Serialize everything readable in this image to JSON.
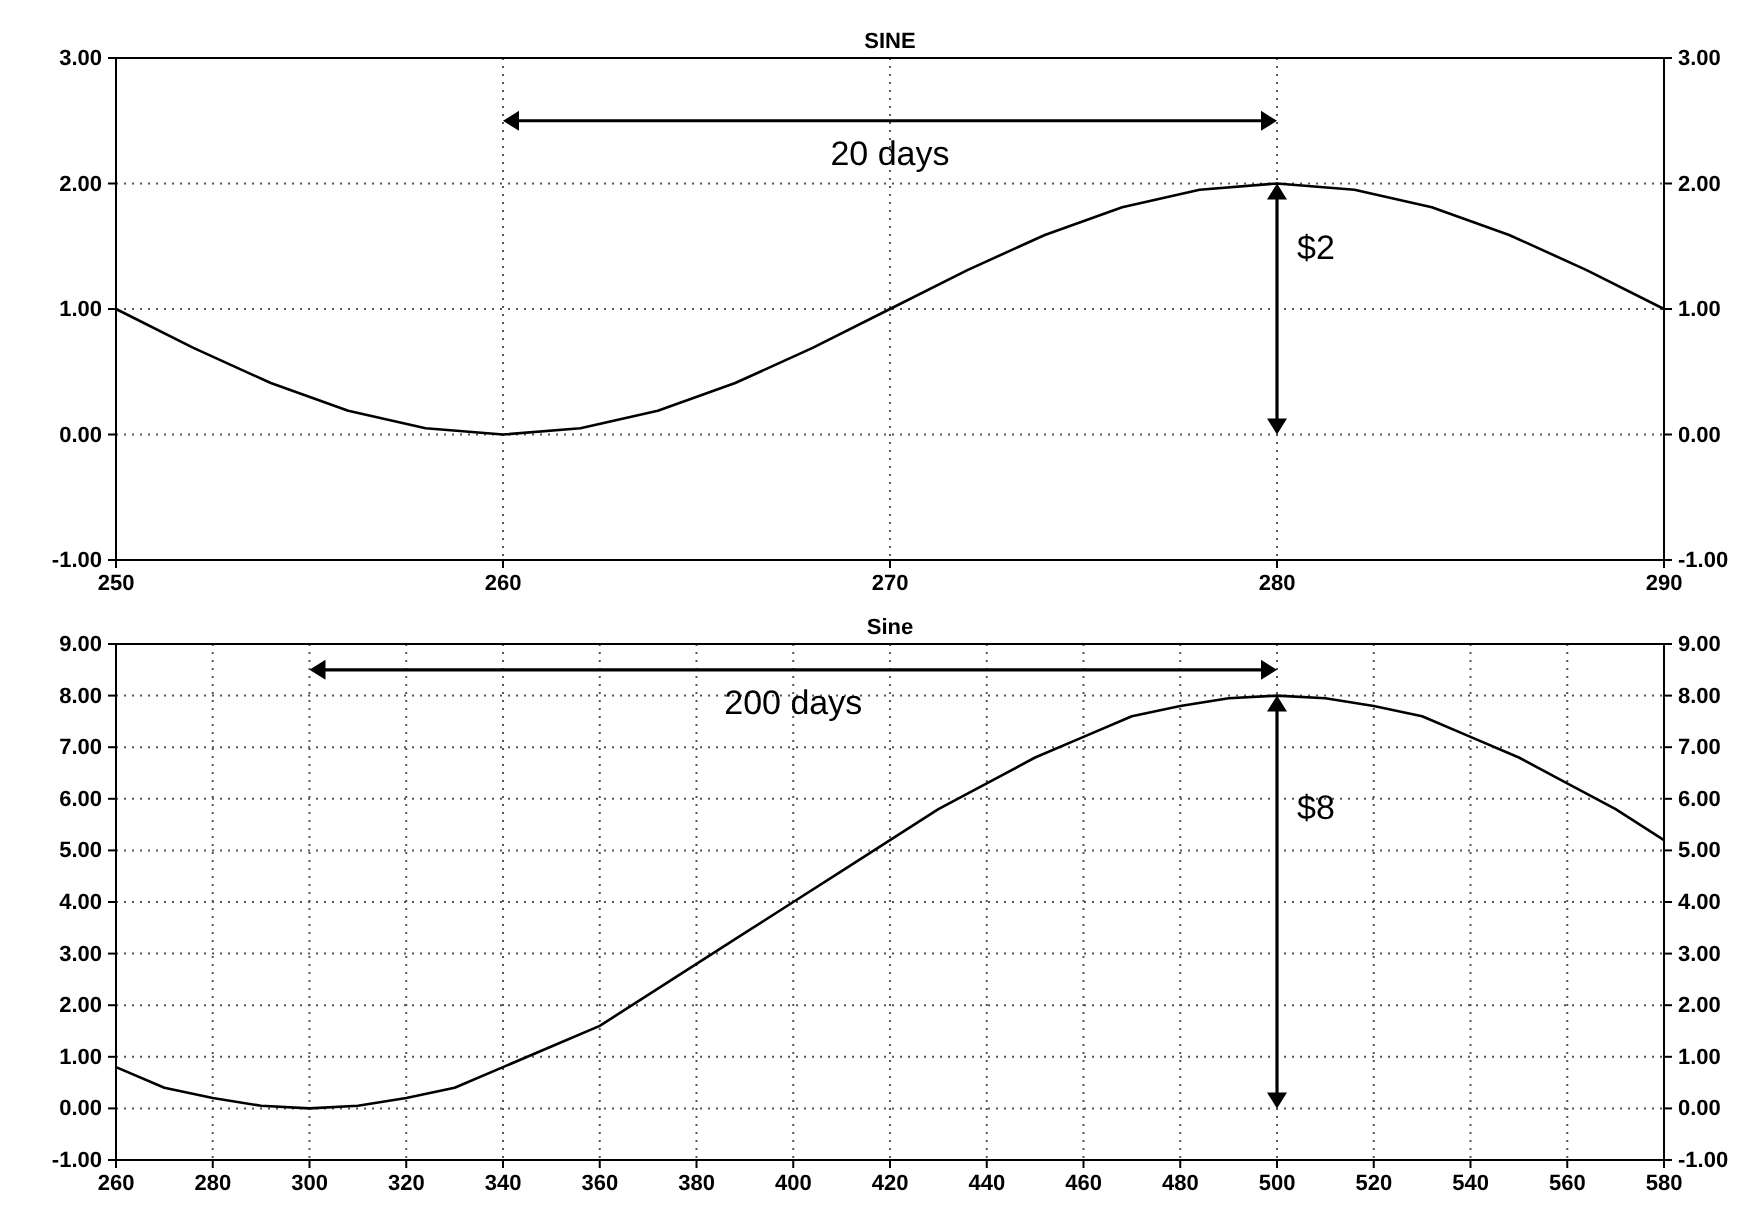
{
  "chart_data": [
    {
      "type": "line",
      "title": "SINE",
      "xlim": [
        250,
        290
      ],
      "xticks": [
        250,
        260,
        270,
        280,
        290
      ],
      "ylim": [
        -1,
        3
      ],
      "yticks": [
        {
          "value": -1,
          "label": "-1.00"
        },
        {
          "value": 0,
          "label": "0.00"
        },
        {
          "value": 1,
          "label": "1.00"
        },
        {
          "value": 2,
          "label": "2.00"
        },
        {
          "value": 3,
          "label": "3.00"
        }
      ],
      "y2lim": [
        -1,
        3
      ],
      "y2ticks": [
        {
          "value": -1,
          "label": "-1.00"
        },
        {
          "value": 0,
          "label": "0.00"
        },
        {
          "value": 1,
          "label": "1.00"
        },
        {
          "value": 2,
          "label": "2.00"
        },
        {
          "value": 3,
          "label": "3.00"
        }
      ],
      "grid": true,
      "marker": "none",
      "line_style": "solid",
      "x": [
        250,
        252,
        254,
        256,
        258,
        260,
        262,
        264,
        266,
        268,
        270,
        272,
        274,
        276,
        278,
        280,
        282,
        284,
        286,
        288,
        290
      ],
      "series": [
        {
          "color": "#000000",
          "values": [
            1.0,
            0.69,
            0.41,
            0.19,
            0.05,
            0.0,
            0.05,
            0.19,
            0.41,
            0.69,
            1.0,
            1.31,
            1.59,
            1.81,
            1.95,
            2.0,
            1.95,
            1.81,
            1.59,
            1.31,
            1.0
          ]
        }
      ],
      "annotations": [
        "20 days",
        "$2"
      ]
    },
    {
      "type": "line",
      "title": "Sine",
      "xlim": [
        260,
        580
      ],
      "xticks": [
        260,
        280,
        300,
        320,
        340,
        360,
        380,
        400,
        420,
        440,
        460,
        480,
        500,
        520,
        540,
        560,
        580
      ],
      "ylim": [
        -1,
        9
      ],
      "yticks": [
        {
          "value": -1,
          "label": "-1.00"
        },
        {
          "value": 0,
          "label": "0.00"
        },
        {
          "value": 1,
          "label": "1.00"
        },
        {
          "value": 2,
          "label": "2.00"
        },
        {
          "value": 3,
          "label": "3.00"
        },
        {
          "value": 4,
          "label": "4.00"
        },
        {
          "value": 5,
          "label": "5.00"
        },
        {
          "value": 6,
          "label": "6.00"
        },
        {
          "value": 7,
          "label": "7.00"
        },
        {
          "value": 8,
          "label": "8.00"
        },
        {
          "value": 9,
          "label": "9.00"
        }
      ],
      "y2lim": [
        -1,
        9
      ],
      "y2ticks": [
        {
          "value": -1,
          "label": "-1.00"
        },
        {
          "value": 0,
          "label": "0.00"
        },
        {
          "value": 1,
          "label": "1.00"
        },
        {
          "value": 2,
          "label": "2.00"
        },
        {
          "value": 3,
          "label": "3.00"
        },
        {
          "value": 4,
          "label": "4.00"
        },
        {
          "value": 5,
          "label": "5.00"
        },
        {
          "value": 6,
          "label": "6.00"
        },
        {
          "value": 7,
          "label": "7.00"
        },
        {
          "value": 8,
          "label": "8.00"
        },
        {
          "value": 9,
          "label": "9.00"
        }
      ],
      "grid": true,
      "marker": "none",
      "line_style": "solid",
      "x": [
        260,
        270,
        280,
        290,
        300,
        310,
        320,
        330,
        340,
        350,
        360,
        370,
        380,
        390,
        400,
        410,
        420,
        430,
        440,
        450,
        460,
        470,
        480,
        490,
        500,
        510,
        520,
        530,
        540,
        550,
        560,
        570,
        580
      ],
      "series": [
        {
          "color": "#000000",
          "values": [
            0.8,
            0.4,
            0.2,
            0.05,
            0.0,
            0.05,
            0.2,
            0.4,
            0.8,
            1.2,
            1.6,
            2.2,
            2.8,
            3.4,
            4.0,
            4.6,
            5.2,
            5.8,
            6.3,
            6.8,
            7.2,
            7.6,
            7.8,
            7.95,
            8.0,
            7.95,
            7.8,
            7.6,
            7.2,
            6.8,
            6.3,
            5.8,
            5.2
          ]
        }
      ],
      "annotations": [
        "200 days",
        "$8"
      ]
    }
  ]
}
